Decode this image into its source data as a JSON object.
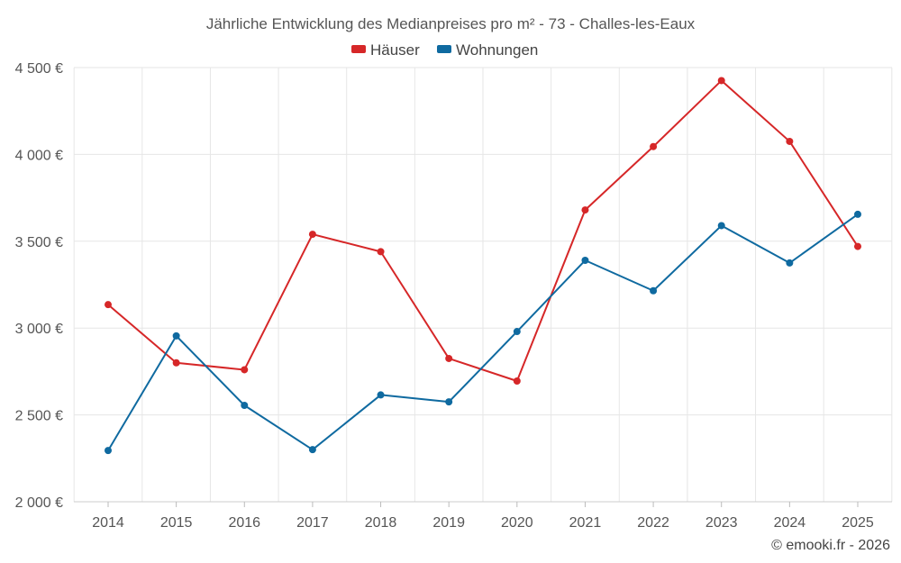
{
  "chart_data": {
    "type": "line",
    "title": "Jährliche Entwicklung des Medianpreises pro m² - 73 - Challes-les-Eaux",
    "categories": [
      "2014",
      "2015",
      "2016",
      "2017",
      "2018",
      "2019",
      "2020",
      "2021",
      "2022",
      "2023",
      "2024",
      "2025"
    ],
    "series": [
      {
        "name": "Häuser",
        "color": "#d62728",
        "values": [
          3135,
          2800,
          2760,
          3540,
          3440,
          2825,
          2695,
          3680,
          4045,
          4425,
          4075,
          3470
        ]
      },
      {
        "name": "Wohnungen",
        "color": "#0f6aa0",
        "values": [
          2295,
          2955,
          2555,
          2300,
          2615,
          2575,
          2980,
          3390,
          3215,
          3590,
          3375,
          3655
        ]
      }
    ],
    "y_ticks": [
      {
        "value": 2000,
        "label": "2 000 €"
      },
      {
        "value": 2500,
        "label": "2 500 €"
      },
      {
        "value": 3000,
        "label": "3 000 €"
      },
      {
        "value": 3500,
        "label": "3 500 €"
      },
      {
        "value": 4000,
        "label": "4 000 €"
      },
      {
        "value": 4500,
        "label": "4 500 €"
      }
    ],
    "ylim": [
      2000,
      4500
    ],
    "xlabel": "",
    "ylabel": "",
    "grid": true,
    "legend_position": "top-center",
    "credit": "© emooki.fr - 2026"
  }
}
